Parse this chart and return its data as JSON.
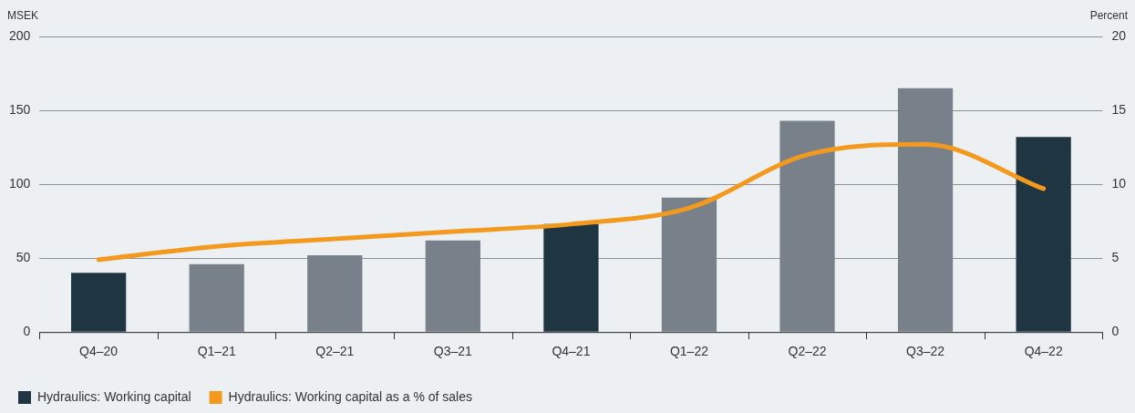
{
  "chart_data": {
    "type": "bar",
    "ylabel": "MSEK",
    "y2label": "Percent",
    "categories": [
      "Q4–20",
      "Q1–21",
      "Q2–21",
      "Q3–21",
      "Q4–21",
      "Q1–22",
      "Q2–22",
      "Q3–22",
      "Q4–22"
    ],
    "series": [
      {
        "name": "Hydraulics: Working capital",
        "color": "#1f3542",
        "colors": [
          "#1f3542",
          "#78808a",
          "#78808a",
          "#78808a",
          "#1f3542",
          "#78808a",
          "#78808a",
          "#78808a",
          "#1f3542"
        ],
        "values": [
          40,
          46,
          52,
          62,
          73,
          91,
          143,
          165,
          132
        ]
      },
      {
        "name": "Hydraulics: Working capital as a % of sales",
        "type": "line",
        "axis": "y2",
        "color": "#f39a1e",
        "values": [
          4.9,
          5.8,
          6.3,
          6.8,
          7.3,
          8.4,
          12.0,
          12.7,
          9.7
        ]
      }
    ],
    "ylim": [
      0,
      200
    ],
    "yticks": [
      0,
      50,
      100,
      150,
      200
    ],
    "y2lim": [
      0,
      20
    ],
    "y2ticks": [
      0,
      5,
      10,
      15,
      20
    ],
    "grid": "y",
    "legend": "bottom",
    "marker": "none",
    "line_style": "solid"
  }
}
